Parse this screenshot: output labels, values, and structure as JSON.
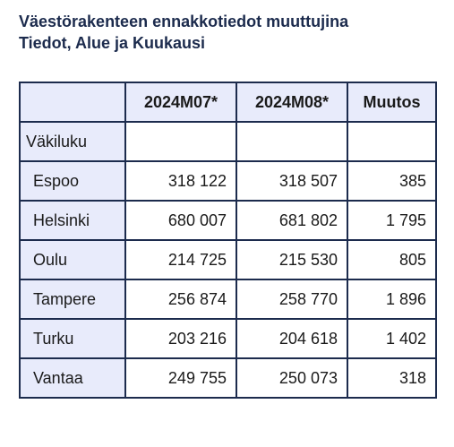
{
  "title": {
    "line1": "Väestörakenteen ennakkotiedot muuttujina",
    "line2": "Tiedot, Alue ja Kuukausi"
  },
  "table": {
    "headers": [
      "",
      "2024M07*",
      "2024M08*",
      "Muutos"
    ],
    "group_label": "Väkiluku",
    "rows": [
      {
        "area": "Espoo",
        "m07": "318 122",
        "m08": "318 507",
        "change": "385"
      },
      {
        "area": "Helsinki",
        "m07": "680 007",
        "m08": "681 802",
        "change": "1 795"
      },
      {
        "area": "Oulu",
        "m07": "214 725",
        "m08": "215 530",
        "change": "805"
      },
      {
        "area": "Tampere",
        "m07": "256 874",
        "m08": "258 770",
        "change": "1 896"
      },
      {
        "area": "Turku",
        "m07": "203 216",
        "m08": "204 618",
        "change": "1 402"
      },
      {
        "area": "Vantaa",
        "m07": "249 755",
        "m08": "250 073",
        "change": "318"
      }
    ]
  }
}
